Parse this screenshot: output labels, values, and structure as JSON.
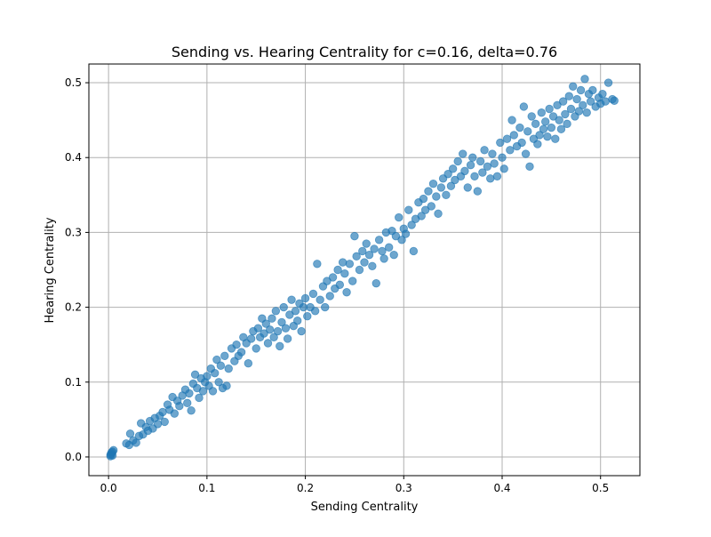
{
  "chart_data": {
    "type": "scatter",
    "title": "Sending vs. Hearing Centrality for c=0.16, delta=0.76",
    "xlabel": "Sending Centrality",
    "ylabel": "Hearing Centrality",
    "xlim": [
      -0.02,
      0.54
    ],
    "ylim": [
      -0.025,
      0.525
    ],
    "xticks": [
      0.0,
      0.1,
      0.2,
      0.3,
      0.4,
      0.5
    ],
    "yticks": [
      0.0,
      0.1,
      0.2,
      0.3,
      0.4,
      0.5
    ],
    "xtick_labels": [
      "0.0",
      "0.1",
      "0.2",
      "0.3",
      "0.4",
      "0.5"
    ],
    "ytick_labels": [
      "0.0",
      "0.1",
      "0.2",
      "0.3",
      "0.4",
      "0.5"
    ],
    "grid": true,
    "legend": "none",
    "point_color": "#1f77b4",
    "point_opacity": 0.65,
    "points": [
      [
        0.002,
        0.003
      ],
      [
        0.003,
        0.006
      ],
      [
        0.004,
        0.002
      ],
      [
        0.005,
        0.009
      ],
      [
        0.003,
        0.004
      ],
      [
        0.004,
        0.007
      ],
      [
        0.002,
        0.001
      ],
      [
        0.018,
        0.018
      ],
      [
        0.021,
        0.016
      ],
      [
        0.022,
        0.031
      ],
      [
        0.025,
        0.022
      ],
      [
        0.028,
        0.019
      ],
      [
        0.031,
        0.028
      ],
      [
        0.033,
        0.045
      ],
      [
        0.035,
        0.03
      ],
      [
        0.038,
        0.04
      ],
      [
        0.04,
        0.035
      ],
      [
        0.042,
        0.048
      ],
      [
        0.045,
        0.038
      ],
      [
        0.047,
        0.052
      ],
      [
        0.05,
        0.044
      ],
      [
        0.052,
        0.055
      ],
      [
        0.055,
        0.06
      ],
      [
        0.057,
        0.047
      ],
      [
        0.06,
        0.07
      ],
      [
        0.062,
        0.063
      ],
      [
        0.065,
        0.08
      ],
      [
        0.067,
        0.058
      ],
      [
        0.07,
        0.075
      ],
      [
        0.072,
        0.068
      ],
      [
        0.075,
        0.082
      ],
      [
        0.078,
        0.09
      ],
      [
        0.08,
        0.072
      ],
      [
        0.082,
        0.085
      ],
      [
        0.084,
        0.062
      ],
      [
        0.086,
        0.098
      ],
      [
        0.088,
        0.11
      ],
      [
        0.09,
        0.092
      ],
      [
        0.092,
        0.079
      ],
      [
        0.094,
        0.105
      ],
      [
        0.096,
        0.088
      ],
      [
        0.098,
        0.1
      ],
      [
        0.1,
        0.108
      ],
      [
        0.102,
        0.095
      ],
      [
        0.104,
        0.118
      ],
      [
        0.106,
        0.088
      ],
      [
        0.108,
        0.112
      ],
      [
        0.11,
        0.13
      ],
      [
        0.112,
        0.1
      ],
      [
        0.114,
        0.122
      ],
      [
        0.116,
        0.092
      ],
      [
        0.118,
        0.135
      ],
      [
        0.12,
        0.095
      ],
      [
        0.122,
        0.118
      ],
      [
        0.125,
        0.145
      ],
      [
        0.128,
        0.128
      ],
      [
        0.13,
        0.15
      ],
      [
        0.132,
        0.135
      ],
      [
        0.135,
        0.14
      ],
      [
        0.137,
        0.16
      ],
      [
        0.14,
        0.152
      ],
      [
        0.142,
        0.125
      ],
      [
        0.145,
        0.158
      ],
      [
        0.147,
        0.168
      ],
      [
        0.15,
        0.145
      ],
      [
        0.152,
        0.172
      ],
      [
        0.154,
        0.16
      ],
      [
        0.156,
        0.185
      ],
      [
        0.158,
        0.165
      ],
      [
        0.16,
        0.178
      ],
      [
        0.162,
        0.152
      ],
      [
        0.164,
        0.17
      ],
      [
        0.166,
        0.185
      ],
      [
        0.168,
        0.16
      ],
      [
        0.17,
        0.195
      ],
      [
        0.172,
        0.168
      ],
      [
        0.174,
        0.148
      ],
      [
        0.176,
        0.18
      ],
      [
        0.178,
        0.2
      ],
      [
        0.18,
        0.172
      ],
      [
        0.182,
        0.158
      ],
      [
        0.184,
        0.19
      ],
      [
        0.186,
        0.21
      ],
      [
        0.188,
        0.175
      ],
      [
        0.19,
        0.195
      ],
      [
        0.192,
        0.182
      ],
      [
        0.194,
        0.205
      ],
      [
        0.196,
        0.168
      ],
      [
        0.198,
        0.2
      ],
      [
        0.2,
        0.212
      ],
      [
        0.202,
        0.188
      ],
      [
        0.205,
        0.2
      ],
      [
        0.208,
        0.218
      ],
      [
        0.21,
        0.195
      ],
      [
        0.212,
        0.258
      ],
      [
        0.215,
        0.21
      ],
      [
        0.218,
        0.228
      ],
      [
        0.22,
        0.2
      ],
      [
        0.222,
        0.235
      ],
      [
        0.225,
        0.215
      ],
      [
        0.228,
        0.24
      ],
      [
        0.23,
        0.225
      ],
      [
        0.233,
        0.25
      ],
      [
        0.235,
        0.23
      ],
      [
        0.238,
        0.26
      ],
      [
        0.24,
        0.245
      ],
      [
        0.242,
        0.22
      ],
      [
        0.245,
        0.258
      ],
      [
        0.248,
        0.235
      ],
      [
        0.25,
        0.295
      ],
      [
        0.252,
        0.268
      ],
      [
        0.255,
        0.25
      ],
      [
        0.258,
        0.275
      ],
      [
        0.26,
        0.26
      ],
      [
        0.262,
        0.285
      ],
      [
        0.265,
        0.27
      ],
      [
        0.268,
        0.255
      ],
      [
        0.27,
        0.278
      ],
      [
        0.272,
        0.232
      ],
      [
        0.275,
        0.29
      ],
      [
        0.278,
        0.275
      ],
      [
        0.28,
        0.265
      ],
      [
        0.282,
        0.3
      ],
      [
        0.285,
        0.28
      ],
      [
        0.288,
        0.302
      ],
      [
        0.29,
        0.27
      ],
      [
        0.292,
        0.295
      ],
      [
        0.295,
        0.32
      ],
      [
        0.298,
        0.29
      ],
      [
        0.3,
        0.305
      ],
      [
        0.302,
        0.298
      ],
      [
        0.305,
        0.33
      ],
      [
        0.308,
        0.31
      ],
      [
        0.31,
        0.275
      ],
      [
        0.312,
        0.318
      ],
      [
        0.315,
        0.34
      ],
      [
        0.318,
        0.322
      ],
      [
        0.32,
        0.345
      ],
      [
        0.322,
        0.33
      ],
      [
        0.325,
        0.355
      ],
      [
        0.328,
        0.335
      ],
      [
        0.33,
        0.365
      ],
      [
        0.333,
        0.348
      ],
      [
        0.335,
        0.325
      ],
      [
        0.338,
        0.36
      ],
      [
        0.34,
        0.372
      ],
      [
        0.343,
        0.35
      ],
      [
        0.345,
        0.378
      ],
      [
        0.348,
        0.362
      ],
      [
        0.35,
        0.385
      ],
      [
        0.352,
        0.37
      ],
      [
        0.355,
        0.395
      ],
      [
        0.358,
        0.375
      ],
      [
        0.36,
        0.405
      ],
      [
        0.362,
        0.382
      ],
      [
        0.365,
        0.36
      ],
      [
        0.368,
        0.39
      ],
      [
        0.37,
        0.4
      ],
      [
        0.372,
        0.375
      ],
      [
        0.375,
        0.355
      ],
      [
        0.378,
        0.395
      ],
      [
        0.38,
        0.38
      ],
      [
        0.382,
        0.41
      ],
      [
        0.385,
        0.388
      ],
      [
        0.388,
        0.372
      ],
      [
        0.39,
        0.405
      ],
      [
        0.392,
        0.392
      ],
      [
        0.395,
        0.375
      ],
      [
        0.398,
        0.42
      ],
      [
        0.4,
        0.4
      ],
      [
        0.402,
        0.385
      ],
      [
        0.405,
        0.425
      ],
      [
        0.408,
        0.41
      ],
      [
        0.41,
        0.45
      ],
      [
        0.412,
        0.43
      ],
      [
        0.415,
        0.415
      ],
      [
        0.418,
        0.44
      ],
      [
        0.42,
        0.42
      ],
      [
        0.422,
        0.468
      ],
      [
        0.424,
        0.405
      ],
      [
        0.426,
        0.435
      ],
      [
        0.428,
        0.388
      ],
      [
        0.43,
        0.455
      ],
      [
        0.432,
        0.425
      ],
      [
        0.434,
        0.445
      ],
      [
        0.436,
        0.418
      ],
      [
        0.438,
        0.43
      ],
      [
        0.44,
        0.46
      ],
      [
        0.442,
        0.438
      ],
      [
        0.444,
        0.448
      ],
      [
        0.446,
        0.428
      ],
      [
        0.448,
        0.465
      ],
      [
        0.45,
        0.44
      ],
      [
        0.452,
        0.455
      ],
      [
        0.454,
        0.425
      ],
      [
        0.456,
        0.47
      ],
      [
        0.458,
        0.45
      ],
      [
        0.46,
        0.438
      ],
      [
        0.462,
        0.475
      ],
      [
        0.464,
        0.458
      ],
      [
        0.466,
        0.445
      ],
      [
        0.468,
        0.482
      ],
      [
        0.47,
        0.465
      ],
      [
        0.472,
        0.495
      ],
      [
        0.474,
        0.455
      ],
      [
        0.476,
        0.478
      ],
      [
        0.478,
        0.462
      ],
      [
        0.48,
        0.49
      ],
      [
        0.482,
        0.47
      ],
      [
        0.484,
        0.505
      ],
      [
        0.486,
        0.46
      ],
      [
        0.488,
        0.485
      ],
      [
        0.49,
        0.475
      ],
      [
        0.492,
        0.49
      ],
      [
        0.495,
        0.468
      ],
      [
        0.498,
        0.48
      ],
      [
        0.5,
        0.472
      ],
      [
        0.502,
        0.485
      ],
      [
        0.505,
        0.475
      ],
      [
        0.508,
        0.5
      ],
      [
        0.512,
        0.478
      ],
      [
        0.514,
        0.476
      ]
    ]
  }
}
